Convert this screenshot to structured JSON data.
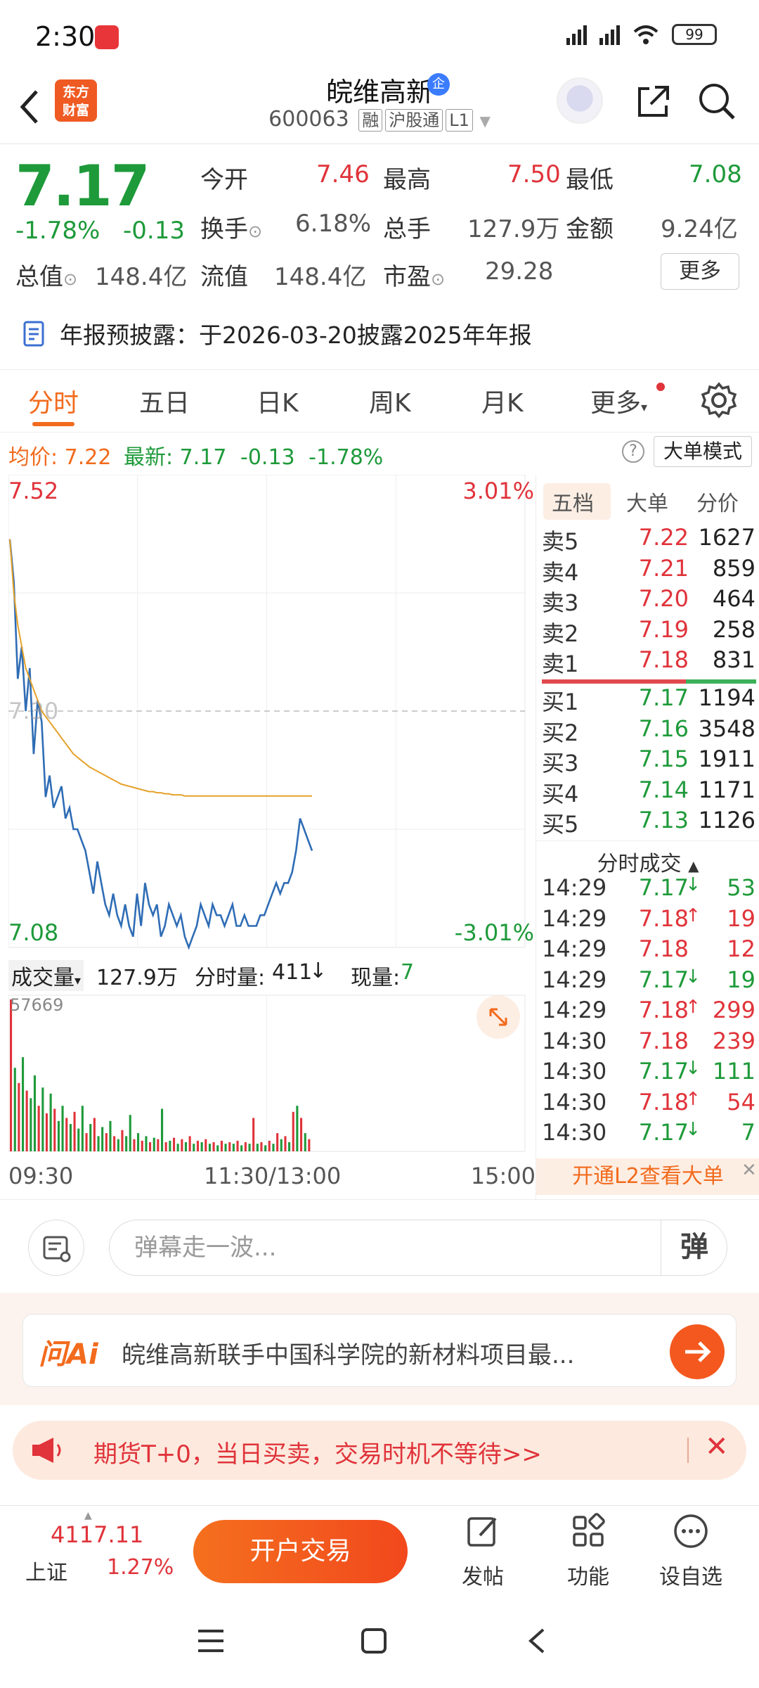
{
  "status": {
    "time": "2:30",
    "battery": "99"
  },
  "header": {
    "app_logo": "东方\n财富",
    "stock_name": "皖维高新",
    "verified_badge": "企",
    "stock_code": "600063",
    "tags": [
      "融",
      "沪股通",
      "L1"
    ]
  },
  "quote": {
    "price": "7.17",
    "change_pct": "-1.78%",
    "change": "-0.13",
    "fields": [
      {
        "label": "今开",
        "value": "7.46",
        "color": "red"
      },
      {
        "label": "最高",
        "value": "7.50",
        "color": "red"
      },
      {
        "label": "最低",
        "value": "7.08",
        "color": "green"
      },
      {
        "label": "换手",
        "value": "6.18%",
        "color": "gray"
      },
      {
        "label": "总手",
        "value": "127.9万",
        "color": "gray"
      },
      {
        "label": "金额",
        "value": "9.24亿",
        "color": "gray"
      },
      {
        "label": "总值",
        "value": "148.4亿",
        "color": "gray"
      },
      {
        "label": "流值",
        "value": "148.4亿",
        "color": "gray"
      },
      {
        "label": "市盈",
        "value": "29.28",
        "color": "gray"
      }
    ],
    "more_button": "更多"
  },
  "notice": "年报预披露：于2026-03-20披露2025年年报",
  "tabs": [
    "分时",
    "五日",
    "日K",
    "周K",
    "月K",
    "更多"
  ],
  "avg_info": {
    "avg_label": "均价:",
    "avg_value": "7.22",
    "latest_label": "最新:",
    "latest_value": "7.17",
    "change": "-0.13",
    "pct": "-1.78%"
  },
  "big_order_button": "大单模式",
  "chart_data": {
    "type": "line",
    "title": "",
    "y_labels": {
      "top": "7.52",
      "bottom": "7.08",
      "top_pct": "3.01%",
      "bottom_pct": "-3.01%",
      "mid": "7.30"
    },
    "ylim": [
      7.08,
      7.52
    ],
    "x_labels": [
      "09:30",
      "11:30/13:00",
      "15:00"
    ],
    "series": [
      {
        "name": "price",
        "color": "#2f6db5",
        "values": [
          7.46,
          7.42,
          7.33,
          7.36,
          7.3,
          7.34,
          7.26,
          7.31,
          7.29,
          7.22,
          7.24,
          7.21,
          7.22,
          7.23,
          7.2,
          7.21,
          7.19,
          7.19,
          7.18,
          7.17,
          7.15,
          7.13,
          7.16,
          7.14,
          7.12,
          7.11,
          7.13,
          7.11,
          7.1,
          7.12,
          7.1,
          7.09,
          7.13,
          7.1,
          7.14,
          7.12,
          7.11,
          7.12,
          7.09,
          7.1,
          7.12,
          7.11,
          7.1,
          7.11,
          7.09,
          7.08,
          7.09,
          7.1,
          7.12,
          7.11,
          7.1,
          7.12,
          7.11,
          7.11,
          7.1,
          7.11,
          7.12,
          7.1,
          7.1,
          7.11,
          7.1,
          7.1,
          7.1,
          7.11,
          7.11,
          7.12,
          7.13,
          7.14,
          7.13,
          7.14,
          7.14,
          7.15,
          7.17,
          7.2,
          7.19,
          7.18,
          7.17
        ]
      },
      {
        "name": "avg",
        "color": "#e5a22a",
        "values": [
          7.46,
          7.41,
          7.38,
          7.36,
          7.34,
          7.33,
          7.32,
          7.31,
          7.3,
          7.295,
          7.29,
          7.285,
          7.28,
          7.275,
          7.27,
          7.265,
          7.26,
          7.257,
          7.254,
          7.251,
          7.248,
          7.246,
          7.244,
          7.242,
          7.24,
          7.238,
          7.236,
          7.234,
          7.232,
          7.231,
          7.23,
          7.229,
          7.228,
          7.227,
          7.226,
          7.225,
          7.225,
          7.224,
          7.224,
          7.223,
          7.223,
          7.222,
          7.222,
          7.222,
          7.221,
          7.221,
          7.221,
          7.221,
          7.221,
          7.221,
          7.221,
          7.221,
          7.221,
          7.221,
          7.221,
          7.221,
          7.221,
          7.221,
          7.221,
          7.221,
          7.221,
          7.221,
          7.221,
          7.221,
          7.221,
          7.221,
          7.221,
          7.221,
          7.221,
          7.221,
          7.221,
          7.221,
          7.221,
          7.221,
          7.221,
          7.221,
          7.221
        ]
      }
    ],
    "volume_max_label": "57669",
    "volume_bars": [
      {
        "v": 1.0,
        "c": "r"
      },
      {
        "v": 0.55,
        "c": "g"
      },
      {
        "v": 0.45,
        "c": "r"
      },
      {
        "v": 0.62,
        "c": "g"
      },
      {
        "v": 0.4,
        "c": "r"
      },
      {
        "v": 0.35,
        "c": "g"
      },
      {
        "v": 0.5,
        "c": "g"
      },
      {
        "v": 0.3,
        "c": "r"
      },
      {
        "v": 0.42,
        "c": "g"
      },
      {
        "v": 0.25,
        "c": "r"
      },
      {
        "v": 0.38,
        "c": "g"
      },
      {
        "v": 0.28,
        "c": "r"
      },
      {
        "v": 0.2,
        "c": "g"
      },
      {
        "v": 0.3,
        "c": "g"
      },
      {
        "v": 0.22,
        "c": "r"
      },
      {
        "v": 0.18,
        "c": "g"
      },
      {
        "v": 0.26,
        "c": "r"
      },
      {
        "v": 0.15,
        "c": "g"
      },
      {
        "v": 0.3,
        "c": "g"
      },
      {
        "v": 0.12,
        "c": "r"
      },
      {
        "v": 0.18,
        "c": "g"
      },
      {
        "v": 0.22,
        "c": "r"
      },
      {
        "v": 0.1,
        "c": "g"
      },
      {
        "v": 0.16,
        "c": "g"
      },
      {
        "v": 0.12,
        "c": "r"
      },
      {
        "v": 0.2,
        "c": "g"
      },
      {
        "v": 0.1,
        "c": "r"
      },
      {
        "v": 0.08,
        "c": "g"
      },
      {
        "v": 0.14,
        "c": "r"
      },
      {
        "v": 0.1,
        "c": "g"
      },
      {
        "v": 0.24,
        "c": "g"
      },
      {
        "v": 0.08,
        "c": "r"
      },
      {
        "v": 0.12,
        "c": "g"
      },
      {
        "v": 0.07,
        "c": "r"
      },
      {
        "v": 0.1,
        "c": "g"
      },
      {
        "v": 0.06,
        "c": "r"
      },
      {
        "v": 0.09,
        "c": "g"
      },
      {
        "v": 0.08,
        "c": "r"
      },
      {
        "v": 0.28,
        "c": "g"
      },
      {
        "v": 0.06,
        "c": "r"
      },
      {
        "v": 0.07,
        "c": "g"
      },
      {
        "v": 0.09,
        "c": "r"
      },
      {
        "v": 0.05,
        "c": "g"
      },
      {
        "v": 0.08,
        "c": "r"
      },
      {
        "v": 0.06,
        "c": "g"
      },
      {
        "v": 0.1,
        "c": "r"
      },
      {
        "v": 0.05,
        "c": "g"
      },
      {
        "v": 0.07,
        "c": "r"
      },
      {
        "v": 0.06,
        "c": "g"
      },
      {
        "v": 0.08,
        "c": "r"
      },
      {
        "v": 0.05,
        "c": "g"
      },
      {
        "v": 0.06,
        "c": "r"
      },
      {
        "v": 0.04,
        "c": "g"
      },
      {
        "v": 0.07,
        "c": "r"
      },
      {
        "v": 0.05,
        "c": "g"
      },
      {
        "v": 0.06,
        "c": "r"
      },
      {
        "v": 0.05,
        "c": "g"
      },
      {
        "v": 0.07,
        "c": "r"
      },
      {
        "v": 0.04,
        "c": "g"
      },
      {
        "v": 0.06,
        "c": "r"
      },
      {
        "v": 0.05,
        "c": "g"
      },
      {
        "v": 0.22,
        "c": "r"
      },
      {
        "v": 0.05,
        "c": "g"
      },
      {
        "v": 0.06,
        "c": "r"
      },
      {
        "v": 0.04,
        "c": "g"
      },
      {
        "v": 0.07,
        "c": "r"
      },
      {
        "v": 0.05,
        "c": "g"
      },
      {
        "v": 0.12,
        "c": "r"
      },
      {
        "v": 0.08,
        "c": "g"
      },
      {
        "v": 0.1,
        "c": "r"
      },
      {
        "v": 0.06,
        "c": "g"
      },
      {
        "v": 0.26,
        "c": "r"
      },
      {
        "v": 0.3,
        "c": "g"
      },
      {
        "v": 0.22,
        "c": "r"
      },
      {
        "v": 0.12,
        "c": "g"
      },
      {
        "v": 0.08,
        "c": "r"
      }
    ]
  },
  "volume_info": {
    "dropdown": "成交量",
    "total": "127.9万",
    "minute_label": "分时量:",
    "minute_value": "411",
    "current_label": "现量:",
    "current_value": "7"
  },
  "book": {
    "tabs": [
      "五档",
      "大单",
      "分价"
    ],
    "asks": [
      {
        "label": "卖5",
        "price": "7.22",
        "vol": "1627",
        "color": "red"
      },
      {
        "label": "卖4",
        "price": "7.21",
        "vol": "859",
        "color": "red"
      },
      {
        "label": "卖3",
        "price": "7.20",
        "vol": "464",
        "color": "red"
      },
      {
        "label": "卖2",
        "price": "7.19",
        "vol": "258",
        "color": "red"
      },
      {
        "label": "卖1",
        "price": "7.18",
        "vol": "831",
        "color": "red"
      }
    ],
    "bids": [
      {
        "label": "买1",
        "price": "7.17",
        "vol": "1194",
        "color": "green"
      },
      {
        "label": "买2",
        "price": "7.16",
        "vol": "3548",
        "color": "green"
      },
      {
        "label": "买3",
        "price": "7.15",
        "vol": "1911",
        "color": "green"
      },
      {
        "label": "买4",
        "price": "7.14",
        "vol": "1171",
        "color": "green"
      },
      {
        "label": "买5",
        "price": "7.13",
        "vol": "1126",
        "color": "green"
      }
    ],
    "trades_title": "分时成交",
    "trades": [
      {
        "time": "14:29",
        "price": "7.17",
        "dir": "↓",
        "vol": "53",
        "color": "green"
      },
      {
        "time": "14:29",
        "price": "7.18",
        "dir": "↑",
        "vol": "19",
        "color": "red"
      },
      {
        "time": "14:29",
        "price": "7.18",
        "dir": "",
        "vol": "12",
        "color": "red"
      },
      {
        "time": "14:29",
        "price": "7.17",
        "dir": "↓",
        "vol": "19",
        "color": "green"
      },
      {
        "time": "14:29",
        "price": "7.18",
        "dir": "↑",
        "vol": "299",
        "color": "red"
      },
      {
        "time": "14:30",
        "price": "7.18",
        "dir": "",
        "vol": "239",
        "color": "red"
      },
      {
        "time": "14:30",
        "price": "7.17",
        "dir": "↓",
        "vol": "111",
        "color": "green"
      },
      {
        "time": "14:30",
        "price": "7.18",
        "dir": "↑",
        "vol": "54",
        "color": "red"
      },
      {
        "time": "14:30",
        "price": "7.17",
        "dir": "↓",
        "vol": "7",
        "color": "green"
      }
    ],
    "l2_banner": "开通L2查看大单"
  },
  "danmu": {
    "placeholder": "弹幕走一波...",
    "send": "弹"
  },
  "ai": {
    "label": "问Ai",
    "text": "皖维高新联手中国科学院的新材料项目最..."
  },
  "promo": {
    "text": "期货T+0，当日买卖，交易时机不等待>>"
  },
  "bottom": {
    "index_value": "4117.11",
    "index_name": "上证",
    "index_pct": "1.27%",
    "trade_button": "开户交易",
    "items": [
      "发帖",
      "功能",
      "设自选"
    ]
  },
  "colors": {
    "accent": "#f26b1d",
    "up": "#e0333a",
    "down": "#1e9a3a"
  }
}
